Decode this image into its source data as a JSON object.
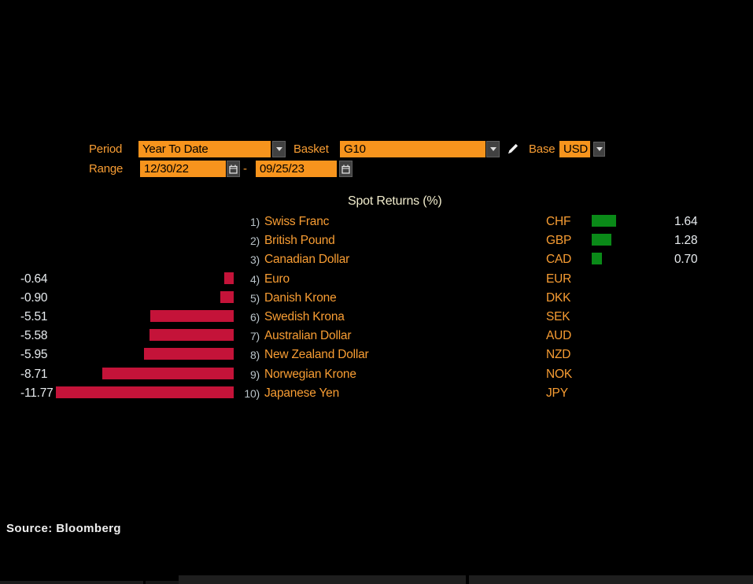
{
  "controls": {
    "period": {
      "label": "Period",
      "value": "Year To Date"
    },
    "basket": {
      "label": "Basket",
      "value": "G10"
    },
    "base": {
      "label": "Base",
      "value": "USD"
    },
    "range": {
      "label": "Range",
      "start": "12/30/22",
      "separator": "-",
      "end": "09/25/23"
    }
  },
  "colors": {
    "field_background": "#f7941d",
    "label_orange": "#f89d33",
    "title_cream": "#f2edcd",
    "value_white": "#e9edf0"
  },
  "chart_data": {
    "type": "bar",
    "orientation": "horizontal",
    "title": "Spot Returns (%)",
    "unit": "%",
    "xlim": [
      -12,
      2
    ],
    "grid": false,
    "legend": null,
    "positive_color": "#0a8a18",
    "negative_color": "#c41339",
    "rows": [
      {
        "rank": "1)",
        "name": "Swiss Franc",
        "code": "CHF",
        "value": 1.64,
        "display": "1.64"
      },
      {
        "rank": "2)",
        "name": "British Pound",
        "code": "GBP",
        "value": 1.28,
        "display": "1.28"
      },
      {
        "rank": "3)",
        "name": "Canadian Dollar",
        "code": "CAD",
        "value": 0.7,
        "display": "0.70"
      },
      {
        "rank": "4)",
        "name": "Euro",
        "code": "EUR",
        "value": -0.64,
        "display": "-0.64"
      },
      {
        "rank": "5)",
        "name": "Danish Krone",
        "code": "DKK",
        "value": -0.9,
        "display": "-0.90"
      },
      {
        "rank": "6)",
        "name": "Swedish Krona",
        "code": "SEK",
        "value": -5.51,
        "display": "-5.51"
      },
      {
        "rank": "7)",
        "name": "Australian Dollar",
        "code": "AUD",
        "value": -5.58,
        "display": "-5.58"
      },
      {
        "rank": "8)",
        "name": "New Zealand Dollar",
        "code": "NZD",
        "value": -5.95,
        "display": "-5.95"
      },
      {
        "rank": "9)",
        "name": "Norwegian Krone",
        "code": "NOK",
        "value": -8.71,
        "display": "-8.71"
      },
      {
        "rank": "10)",
        "name": "Japanese Yen",
        "code": "JPY",
        "value": -11.77,
        "display": "-11.77"
      }
    ]
  },
  "footer": {
    "source": "Source: Bloomberg"
  }
}
